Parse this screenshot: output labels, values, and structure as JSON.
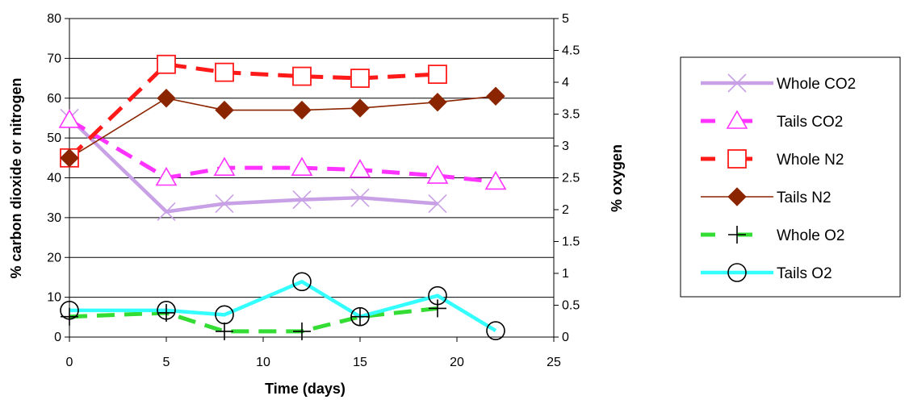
{
  "chart_data": {
    "type": "line",
    "title": "",
    "xlabel": "Time (days)",
    "ylabel_left": "% carbon dioxide or nitrogen",
    "ylabel_right": "% oxygen",
    "xlim": [
      0,
      25
    ],
    "ylim_left": [
      0,
      80
    ],
    "ylim_right": [
      0,
      5
    ],
    "x_ticks": [
      "0",
      "5",
      "10",
      "15",
      "20",
      "25"
    ],
    "y_left_ticks": [
      "0",
      "10",
      "20",
      "30",
      "40",
      "50",
      "60",
      "70",
      "80"
    ],
    "y_right_ticks": [
      "0",
      "0.5",
      "1",
      "1.5",
      "2",
      "2.5",
      "3",
      "3.5",
      "4",
      "4.5",
      "5"
    ],
    "grid": "horizontal",
    "legend_position": "right",
    "series": [
      {
        "name": "Whole CO2",
        "axis": "left",
        "color": "#c8a0e6",
        "line": "solid",
        "marker": "x",
        "x": [
          0,
          5,
          8,
          12,
          15,
          19
        ],
        "y": [
          55,
          31.5,
          33.5,
          34.5,
          35,
          33.5
        ]
      },
      {
        "name": "Tails CO2",
        "axis": "left",
        "color": "#ff33ff",
        "line": "dashed",
        "marker": "triangle",
        "x": [
          0,
          5,
          8,
          12,
          15,
          19,
          22
        ],
        "y": [
          54.5,
          40,
          42.5,
          42.5,
          42,
          40.5,
          39
        ]
      },
      {
        "name": "Whole N2",
        "axis": "left",
        "color": "#ff1a1a",
        "line": "dashed",
        "marker": "square",
        "x": [
          0,
          5,
          8,
          12,
          15,
          19
        ],
        "y": [
          45,
          68.5,
          66.5,
          65.5,
          65,
          66
        ]
      },
      {
        "name": "Tails N2",
        "axis": "left",
        "color": "#8b2500",
        "line": "solid",
        "marker": "diamond",
        "x": [
          0,
          5,
          8,
          12,
          15,
          19,
          22
        ],
        "y": [
          45,
          60,
          57,
          57,
          57.5,
          59,
          60.5
        ]
      },
      {
        "name": "Whole O2",
        "axis": "right",
        "color": "#33dd33",
        "line": "dashed",
        "marker": "plus",
        "x": [
          0,
          5,
          8,
          12,
          15,
          19
        ],
        "y": [
          0.32,
          0.38,
          0.09,
          0.09,
          0.32,
          0.45
        ]
      },
      {
        "name": "Tails O2",
        "axis": "right",
        "color": "#33ffff",
        "line": "solid",
        "marker": "circle",
        "x": [
          0,
          5,
          8,
          12,
          15,
          19,
          22
        ],
        "y": [
          0.42,
          0.42,
          0.35,
          0.87,
          0.32,
          0.65,
          0.1
        ]
      }
    ]
  }
}
